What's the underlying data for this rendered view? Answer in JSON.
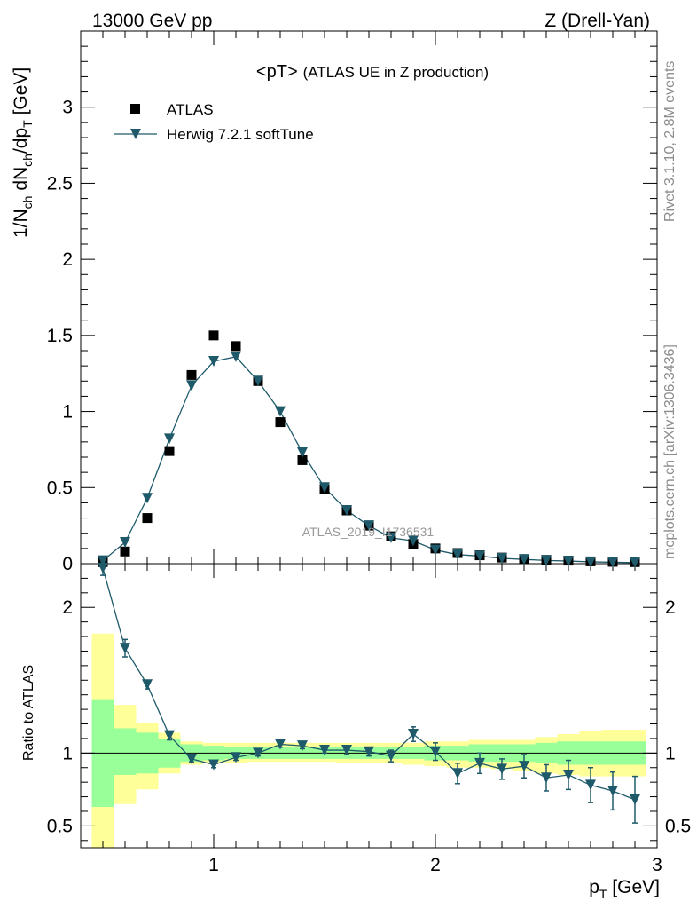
{
  "header": {
    "left": "13000 GeV pp",
    "right": "Z (Drell-Yan)"
  },
  "side": {
    "rivet": "Rivet 3.1.10,  2.8M events",
    "mcplots": "mcplots.cern.ch [arXiv:1306.3436]"
  },
  "watermark": "ATLAS_2019_I1736531",
  "chart_data": {
    "type": "scatter",
    "title_main": "<pT>",
    "title_sub": "(ATLAS UE in Z production)",
    "ylabel_main": "1/N",
    "ylabel_sub1": "ch",
    "ylabel_mid": " dN",
    "ylabel_sub2": "ch",
    "ylabel_mid2": "/dp",
    "ylabel_sub3": "T",
    "ylabel_end": " [GeV]",
    "xlabel_main": "p",
    "xlabel_sub": "T",
    "xlabel_end": " [GeV]",
    "ratio_ylabel": "Ratio to ATLAS",
    "xlim": [
      0.4,
      3.0
    ],
    "ylim": [
      0,
      3.5
    ],
    "ratio_ylim": [
      0.35,
      2.3
    ],
    "main_yticks": [
      "0",
      "0.5",
      "1",
      "1.5",
      "2",
      "2.5",
      "3"
    ],
    "ratio_yticks": [
      "0.5",
      "1",
      "2"
    ],
    "xticks": [
      "1",
      "2",
      "3"
    ],
    "legend": {
      "data_label": "ATLAS",
      "mc_label": "Herwig 7.2.1 softTune",
      "position": "top-left"
    },
    "x": [
      0.5,
      0.6,
      0.7,
      0.8,
      0.9,
      1.0,
      1.1,
      1.2,
      1.3,
      1.4,
      1.5,
      1.6,
      1.7,
      1.8,
      1.9,
      2.0,
      2.1,
      2.2,
      2.3,
      2.4,
      2.5,
      2.6,
      2.7,
      2.8,
      2.9
    ],
    "bin_edges": [
      0.45,
      0.55,
      0.65,
      0.75,
      0.85,
      0.95,
      1.05,
      1.15,
      1.25,
      1.35,
      1.45,
      1.55,
      1.65,
      1.75,
      1.85,
      1.95,
      2.05,
      2.15,
      2.25,
      2.35,
      2.45,
      2.55,
      2.65,
      2.75,
      2.85,
      2.95
    ],
    "series": [
      {
        "name": "ATLAS",
        "color": "#000000",
        "values": [
          0.01,
          0.08,
          0.3,
          0.74,
          1.24,
          1.5,
          1.43,
          1.2,
          0.93,
          0.68,
          0.49,
          0.35,
          0.25,
          0.18,
          0.13,
          0.1,
          0.07,
          0.055,
          0.04,
          0.03,
          0.025,
          0.02,
          0.015,
          0.012,
          0.01
        ]
      },
      {
        "name": "Herwig 7.2.1 softTune",
        "color": "#1f5a6a",
        "values": [
          0.02,
          0.14,
          0.43,
          0.82,
          1.17,
          1.33,
          1.36,
          1.2,
          1.0,
          0.73,
          0.5,
          0.35,
          0.25,
          0.17,
          0.15,
          0.09,
          0.06,
          0.05,
          0.035,
          0.028,
          0.021,
          0.017,
          0.012,
          0.009,
          0.007
        ],
        "ratio": [
          2.27,
          1.72,
          1.47,
          1.12,
          0.96,
          0.92,
          0.97,
          1.0,
          1.06,
          1.05,
          1.02,
          1.02,
          1.01,
          0.98,
          1.13,
          1.01,
          0.86,
          0.93,
          0.89,
          0.91,
          0.83,
          0.85,
          0.78,
          0.74,
          0.68
        ],
        "ratio_err": [
          0.05,
          0.06,
          0.03,
          0.03,
          0.02,
          0.02,
          0.02,
          0.02,
          0.02,
          0.02,
          0.02,
          0.03,
          0.03,
          0.04,
          0.05,
          0.06,
          0.07,
          0.07,
          0.07,
          0.08,
          0.09,
          0.1,
          0.12,
          0.13,
          0.16
        ]
      }
    ],
    "band_1sigma": {
      "color": "#99ff99",
      "lo": [
        0.63,
        0.85,
        0.86,
        0.9,
        0.94,
        0.95,
        0.96,
        0.96,
        0.96,
        0.96,
        0.96,
        0.96,
        0.96,
        0.96,
        0.96,
        0.95,
        0.95,
        0.94,
        0.94,
        0.94,
        0.93,
        0.92,
        0.92,
        0.92,
        0.92
      ],
      "hi": [
        1.37,
        1.17,
        1.14,
        1.1,
        1.06,
        1.05,
        1.04,
        1.04,
        1.04,
        1.04,
        1.04,
        1.04,
        1.04,
        1.04,
        1.04,
        1.05,
        1.05,
        1.06,
        1.06,
        1.06,
        1.07,
        1.08,
        1.08,
        1.08,
        1.08
      ]
    },
    "band_2sigma": {
      "color": "#ffff99",
      "lo": [
        0.35,
        0.65,
        0.75,
        0.86,
        0.92,
        0.93,
        0.93,
        0.94,
        0.94,
        0.94,
        0.94,
        0.93,
        0.93,
        0.93,
        0.92,
        0.91,
        0.9,
        0.9,
        0.89,
        0.88,
        0.86,
        0.85,
        0.84,
        0.84,
        0.84
      ],
      "hi": [
        1.82,
        1.33,
        1.21,
        1.14,
        1.08,
        1.07,
        1.07,
        1.07,
        1.07,
        1.07,
        1.07,
        1.07,
        1.07,
        1.07,
        1.07,
        1.08,
        1.08,
        1.09,
        1.09,
        1.09,
        1.11,
        1.13,
        1.15,
        1.16,
        1.16
      ]
    }
  }
}
